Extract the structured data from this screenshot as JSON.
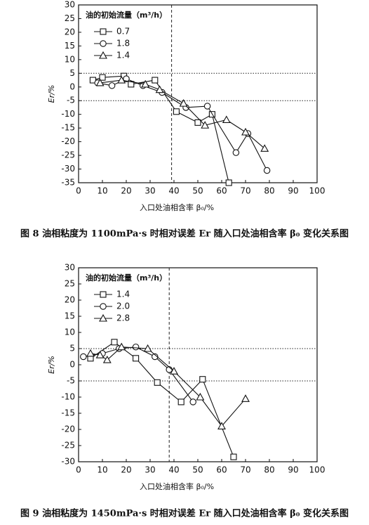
{
  "chart_data": [
    {
      "type": "line",
      "caption": "图 8 油相粘度为 1100mPa·s 时相对误差 Er 随入口处油相含率 β₀ 变化关系图",
      "x_label": "入口处油相含率 β₀/%",
      "y_label": "Er/%",
      "legend_title": "油的初始流量（m³/h）",
      "xlim": [
        0,
        100
      ],
      "xticks": [
        0,
        10,
        20,
        30,
        40,
        50,
        60,
        70,
        80,
        90,
        100
      ],
      "ylim": [
        -35,
        30
      ],
      "yticks": [
        -35,
        -30,
        -25,
        -20,
        -15,
        -10,
        -5,
        0,
        5,
        10,
        15,
        20,
        25,
        30
      ],
      "hlines": [
        5,
        -5
      ],
      "vline": 39,
      "series": [
        {
          "name": "0.7",
          "marker": "square",
          "color": "#111111",
          "x": [
            6,
            10,
            19,
            22,
            32,
            41,
            50,
            56,
            63
          ],
          "values": [
            2.5,
            3.5,
            4,
            1,
            2.5,
            -9,
            -13,
            -10,
            -35
          ]
        },
        {
          "name": "1.8",
          "marker": "circle",
          "color": "#111111",
          "x": [
            8,
            14,
            20,
            27,
            35,
            45,
            54,
            66,
            71,
            79
          ],
          "values": [
            1.5,
            0.5,
            3,
            0.5,
            -2,
            -7.5,
            -7,
            -24,
            -17,
            -30.5
          ]
        },
        {
          "name": "1.4",
          "marker": "triangle",
          "color": "#111111",
          "x": [
            9,
            18,
            28,
            34,
            44,
            53,
            62,
            70,
            78
          ],
          "values": [
            1.5,
            2.5,
            1,
            -1,
            -6,
            -14,
            -12,
            -16.5,
            -22.5
          ]
        }
      ]
    },
    {
      "type": "line",
      "caption": "图 9 油相粘度为 1450mPa·s 时相对误差 Er 随入口处油相含率 β₀ 变化关系图",
      "x_label": "入口处油相含率 β₀/%",
      "y_label": "Er/%",
      "legend_title": "油的初始流量（m³/h）",
      "xlim": [
        0,
        100
      ],
      "xticks": [
        0,
        10,
        20,
        30,
        40,
        50,
        60,
        70,
        80,
        90,
        100
      ],
      "ylim": [
        -30,
        30
      ],
      "yticks": [
        -30,
        -25,
        -20,
        -15,
        -10,
        -5,
        0,
        5,
        10,
        15,
        20,
        25,
        30
      ],
      "hlines": [
        5,
        -5
      ],
      "vline": 38,
      "series": [
        {
          "name": "1.4",
          "marker": "square",
          "color": "#111111",
          "x": [
            5,
            15,
            24,
            33,
            43,
            52,
            65
          ],
          "values": [
            2,
            7,
            2,
            -5.5,
            -11.5,
            -4.5,
            -28.5
          ]
        },
        {
          "name": "2.0",
          "marker": "circle",
          "color": "#111111",
          "x": [
            2,
            10,
            17,
            24,
            32,
            38,
            48
          ],
          "values": [
            2.5,
            3.5,
            5,
            5.5,
            2.5,
            -1.5,
            -11.5
          ]
        },
        {
          "name": "2.8",
          "marker": "triangle",
          "color": "#111111",
          "x": [
            5,
            9,
            12,
            18,
            29,
            40,
            51,
            60,
            70
          ],
          "values": [
            3.5,
            3,
            1.5,
            5.5,
            5,
            -2,
            -10,
            -19,
            -10.5
          ]
        }
      ]
    }
  ]
}
